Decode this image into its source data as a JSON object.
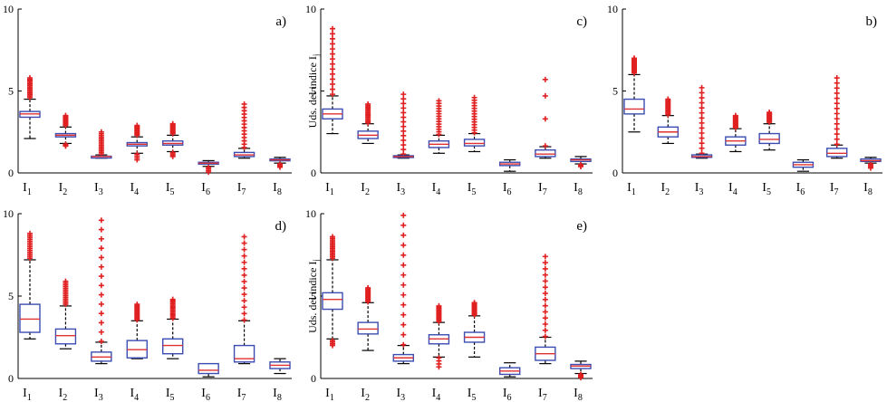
{
  "colors": {
    "box": "#3b4db0",
    "median": "#e03030",
    "outlier": "#e02020",
    "whisker": "#000000",
    "axis": "#000000",
    "background": "#ffffff"
  },
  "chart_data": [
    {
      "panel": "a)",
      "type": "boxplot",
      "ylabel": "",
      "ylim": [
        0,
        10
      ],
      "yticks": [
        "0",
        "5",
        "10"
      ],
      "categories": [
        {
          "name": "I",
          "sub": "1"
        },
        {
          "name": "I",
          "sub": "2"
        },
        {
          "name": "I",
          "sub": "3"
        },
        {
          "name": "I",
          "sub": "4"
        },
        {
          "name": "I",
          "sub": "5"
        },
        {
          "name": "I",
          "sub": "6"
        },
        {
          "name": "I",
          "sub": "7"
        },
        {
          "name": "I",
          "sub": "8"
        }
      ],
      "boxes": [
        {
          "wlo": 2.1,
          "q1": 3.4,
          "med": 3.6,
          "q3": 3.75,
          "whi": 4.5,
          "outLo": [],
          "outHi": [
            4.6,
            5.8
          ]
        },
        {
          "wlo": 1.8,
          "q1": 2.2,
          "med": 2.3,
          "q3": 2.4,
          "whi": 2.8,
          "outLo": [
            1.6,
            1.75
          ],
          "outHi": [
            2.85,
            3.5
          ]
        },
        {
          "wlo": 0.9,
          "q1": 0.95,
          "med": 1.0,
          "q3": 1.02,
          "whi": 1.1,
          "outLo": [],
          "outHi": [
            1.15,
            2.5
          ]
        },
        {
          "wlo": 1.2,
          "q1": 1.65,
          "med": 1.75,
          "q3": 1.85,
          "whi": 2.2,
          "outLo": [
            0.8,
            1.15
          ],
          "outHi": [
            2.25,
            2.9
          ]
        },
        {
          "wlo": 1.3,
          "q1": 1.7,
          "med": 1.8,
          "q3": 1.95,
          "whi": 2.3,
          "outLo": [
            1.0,
            1.25
          ],
          "outHi": [
            2.35,
            3.0
          ]
        },
        {
          "wlo": 0.4,
          "q1": 0.55,
          "med": 0.6,
          "q3": 0.65,
          "whi": 0.75,
          "outLo": [
            0.05,
            0.35
          ],
          "outHi": []
        },
        {
          "wlo": 0.9,
          "q1": 1.0,
          "med": 1.1,
          "q3": 1.25,
          "whi": 1.5,
          "outLo": [],
          "outHi": [
            1.55,
            4.2
          ]
        },
        {
          "wlo": 0.6,
          "q1": 0.75,
          "med": 0.8,
          "q3": 0.85,
          "whi": 0.95,
          "outLo": [
            0.35,
            0.55
          ],
          "outHi": []
        }
      ]
    },
    {
      "panel": "c)",
      "type": "boxplot",
      "ylabel": "Uds. del indice I",
      "ylabel_sub": "j",
      "ylim": [
        0,
        10
      ],
      "yticks": [
        "0",
        "5",
        "10"
      ],
      "categories": [
        {
          "name": "I",
          "sub": "1"
        },
        {
          "name": "I",
          "sub": "2"
        },
        {
          "name": "I",
          "sub": "3"
        },
        {
          "name": "I",
          "sub": "4"
        },
        {
          "name": "I",
          "sub": "5"
        },
        {
          "name": "I",
          "sub": "6"
        },
        {
          "name": "I",
          "sub": "7"
        },
        {
          "name": "I",
          "sub": "8"
        }
      ],
      "boxes": [
        {
          "wlo": 2.4,
          "q1": 3.3,
          "med": 3.6,
          "q3": 3.9,
          "whi": 4.7,
          "outLo": [],
          "outHi": [
            4.8,
            8.8
          ]
        },
        {
          "wlo": 1.8,
          "q1": 2.1,
          "med": 2.3,
          "q3": 2.55,
          "whi": 3.0,
          "outLo": [],
          "outHi": [
            3.05,
            4.2
          ]
        },
        {
          "wlo": 0.9,
          "q1": 0.95,
          "med": 1.0,
          "q3": 1.05,
          "whi": 1.1,
          "outLo": [],
          "outHi": [
            1.15,
            4.8
          ]
        },
        {
          "wlo": 1.2,
          "q1": 1.55,
          "med": 1.75,
          "q3": 1.95,
          "whi": 2.3,
          "outLo": [],
          "outHi": [
            2.35,
            4.4
          ]
        },
        {
          "wlo": 1.3,
          "q1": 1.65,
          "med": 1.8,
          "q3": 2.05,
          "whi": 2.4,
          "outLo": [],
          "outHi": [
            2.45,
            4.6
          ]
        },
        {
          "wlo": 0.1,
          "q1": 0.45,
          "med": 0.55,
          "q3": 0.65,
          "whi": 0.8,
          "outLo": [],
          "outHi": []
        },
        {
          "wlo": 0.9,
          "q1": 1.0,
          "med": 1.15,
          "q3": 1.4,
          "whi": 1.6,
          "outLo": [],
          "outHi": [
            1.65,
            3.3,
            4.7,
            5.7
          ]
        },
        {
          "wlo": 0.55,
          "q1": 0.7,
          "med": 0.8,
          "q3": 0.85,
          "whi": 1.0,
          "outLo": [
            0.35,
            0.5
          ],
          "outHi": []
        }
      ]
    },
    {
      "panel": "b)",
      "type": "boxplot",
      "ylabel": "",
      "ylim": [
        0,
        10
      ],
      "yticks": [
        "0",
        "5",
        "10"
      ],
      "categories": [
        {
          "name": "I",
          "sub": "1"
        },
        {
          "name": "I",
          "sub": "2"
        },
        {
          "name": "I",
          "sub": "3"
        },
        {
          "name": "I",
          "sub": "4"
        },
        {
          "name": "I",
          "sub": "5"
        },
        {
          "name": "I",
          "sub": "6"
        },
        {
          "name": "I",
          "sub": "7"
        },
        {
          "name": "I",
          "sub": "8"
        }
      ],
      "boxes": [
        {
          "wlo": 2.5,
          "q1": 3.6,
          "med": 3.9,
          "q3": 4.5,
          "whi": 6.0,
          "outLo": [],
          "outHi": [
            6.1,
            7.0
          ]
        },
        {
          "wlo": 1.8,
          "q1": 2.2,
          "med": 2.5,
          "q3": 2.8,
          "whi": 3.5,
          "outLo": [],
          "outHi": [
            3.55,
            4.5
          ]
        },
        {
          "wlo": 0.9,
          "q1": 0.95,
          "med": 1.0,
          "q3": 1.1,
          "whi": 1.15,
          "outLo": [],
          "outHi": [
            1.2,
            5.2
          ]
        },
        {
          "wlo": 1.3,
          "q1": 1.7,
          "med": 1.95,
          "q3": 2.2,
          "whi": 2.7,
          "outLo": [],
          "outHi": [
            2.75,
            3.5
          ]
        },
        {
          "wlo": 1.4,
          "q1": 1.8,
          "med": 2.05,
          "q3": 2.4,
          "whi": 3.0,
          "outLo": [],
          "outHi": [
            3.05,
            3.7
          ]
        },
        {
          "wlo": 0.1,
          "q1": 0.35,
          "med": 0.5,
          "q3": 0.65,
          "whi": 0.8,
          "outLo": [],
          "outHi": []
        },
        {
          "wlo": 0.9,
          "q1": 1.0,
          "med": 1.2,
          "q3": 1.5,
          "whi": 1.7,
          "outLo": [],
          "outHi": [
            1.75,
            5.8
          ]
        },
        {
          "wlo": 0.6,
          "q1": 0.7,
          "med": 0.75,
          "q3": 0.85,
          "whi": 0.95,
          "outLo": [
            0.3,
            0.55
          ],
          "outHi": []
        }
      ]
    },
    {
      "panel": "d)",
      "type": "boxplot",
      "ylabel": "",
      "ylim": [
        0,
        10
      ],
      "yticks": [
        "0",
        "5",
        "10"
      ],
      "categories": [
        {
          "name": "I",
          "sub": "1"
        },
        {
          "name": "I",
          "sub": "2"
        },
        {
          "name": "I",
          "sub": "3"
        },
        {
          "name": "I",
          "sub": "4"
        },
        {
          "name": "I",
          "sub": "5"
        },
        {
          "name": "I",
          "sub": "6"
        },
        {
          "name": "I",
          "sub": "7"
        },
        {
          "name": "I",
          "sub": "8"
        }
      ],
      "boxes": [
        {
          "wlo": 2.4,
          "q1": 2.8,
          "med": 3.6,
          "q3": 4.5,
          "whi": 7.2,
          "outLo": [],
          "outHi": [
            7.3,
            8.8
          ]
        },
        {
          "wlo": 1.8,
          "q1": 2.1,
          "med": 2.6,
          "q3": 3.0,
          "whi": 4.4,
          "outLo": [],
          "outHi": [
            4.5,
            5.9
          ]
        },
        {
          "wlo": 0.9,
          "q1": 1.05,
          "med": 1.3,
          "q3": 1.6,
          "whi": 2.2,
          "outLo": [],
          "outHi": [
            2.25,
            9.6
          ]
        },
        {
          "wlo": 1.2,
          "q1": 1.25,
          "med": 1.75,
          "q3": 2.3,
          "whi": 3.5,
          "outLo": [],
          "outHi": [
            3.55,
            4.5
          ]
        },
        {
          "wlo": 1.2,
          "q1": 1.5,
          "med": 2.0,
          "q3": 2.4,
          "whi": 3.6,
          "outLo": [],
          "outHi": [
            3.65,
            4.8
          ]
        },
        {
          "wlo": 0.1,
          "q1": 0.3,
          "med": 0.5,
          "q3": 0.9,
          "whi": 0.9,
          "outLo": [],
          "outHi": []
        },
        {
          "wlo": 0.9,
          "q1": 1.0,
          "med": 1.2,
          "q3": 2.0,
          "whi": 3.5,
          "outLo": [],
          "outHi": [
            3.55,
            8.6
          ]
        },
        {
          "wlo": 0.3,
          "q1": 0.6,
          "med": 0.8,
          "q3": 1.0,
          "whi": 1.2,
          "outLo": [],
          "outHi": []
        }
      ]
    },
    {
      "panel": "e)",
      "type": "boxplot",
      "ylabel": "Uds. del indice I",
      "ylabel_sub": "j",
      "ylim": [
        0,
        10
      ],
      "yticks": [
        "0",
        "5",
        "10"
      ],
      "categories": [
        {
          "name": "I",
          "sub": "1"
        },
        {
          "name": "I",
          "sub": "2"
        },
        {
          "name": "I",
          "sub": "3"
        },
        {
          "name": "I",
          "sub": "4"
        },
        {
          "name": "I",
          "sub": "5"
        },
        {
          "name": "I",
          "sub": "6"
        },
        {
          "name": "I",
          "sub": "7"
        },
        {
          "name": "I",
          "sub": "8"
        }
      ],
      "boxes": [
        {
          "wlo": 2.4,
          "q1": 4.2,
          "med": 4.8,
          "q3": 5.2,
          "whi": 7.2,
          "outLo": [
            2.0,
            2.3
          ],
          "outHi": [
            7.3,
            8.6
          ]
        },
        {
          "wlo": 1.7,
          "q1": 2.7,
          "med": 3.0,
          "q3": 3.4,
          "whi": 4.6,
          "outLo": [],
          "outHi": [
            4.65,
            5.5
          ]
        },
        {
          "wlo": 0.9,
          "q1": 1.05,
          "med": 1.25,
          "q3": 1.45,
          "whi": 2.0,
          "outLo": [],
          "outHi": [
            2.05,
            9.9
          ]
        },
        {
          "wlo": 1.3,
          "q1": 2.1,
          "med": 2.4,
          "q3": 2.65,
          "whi": 3.4,
          "outLo": [
            0.7,
            1.25
          ],
          "outHi": [
            3.45,
            4.4
          ]
        },
        {
          "wlo": 1.3,
          "q1": 2.2,
          "med": 2.5,
          "q3": 2.8,
          "whi": 3.8,
          "outLo": [],
          "outHi": [
            3.85,
            4.6
          ]
        },
        {
          "wlo": 0.1,
          "q1": 0.25,
          "med": 0.45,
          "q3": 0.65,
          "whi": 0.95,
          "outLo": [],
          "outHi": []
        },
        {
          "wlo": 0.9,
          "q1": 1.1,
          "med": 1.5,
          "q3": 1.9,
          "whi": 2.5,
          "outLo": [],
          "outHi": [
            2.55,
            7.4
          ]
        },
        {
          "wlo": 0.3,
          "q1": 0.6,
          "med": 0.75,
          "q3": 0.85,
          "whi": 1.05,
          "outLo": [
            0.05,
            0.25
          ],
          "outHi": []
        }
      ]
    }
  ]
}
